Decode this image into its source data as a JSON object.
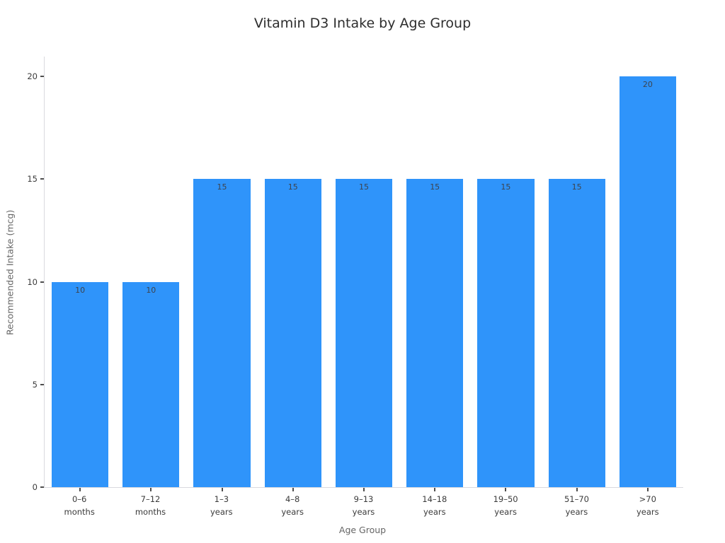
{
  "chart_data": {
    "type": "bar",
    "title": "Vitamin D3 Intake by Age Group",
    "xlabel": "Age Group",
    "ylabel": "Recommended Intake (mcg)",
    "categories": [
      "0–6\nmonths",
      "7–12\nmonths",
      "1–3\nyears",
      "4–8\nyears",
      "9–13\nyears",
      "14–18\nyears",
      "19–50\nyears",
      "51–70\nyears",
      ">70\nyears"
    ],
    "values": [
      10,
      10,
      15,
      15,
      15,
      15,
      15,
      15,
      20
    ],
    "value_labels": [
      "10",
      "10",
      "15",
      "15",
      "15",
      "15",
      "15",
      "15",
      "20"
    ],
    "yticks": [
      0,
      5,
      10,
      15,
      20
    ],
    "ylim": [
      0,
      21
    ],
    "bar_color": "#2f94fa",
    "grid": false,
    "legend_position": "none"
  }
}
